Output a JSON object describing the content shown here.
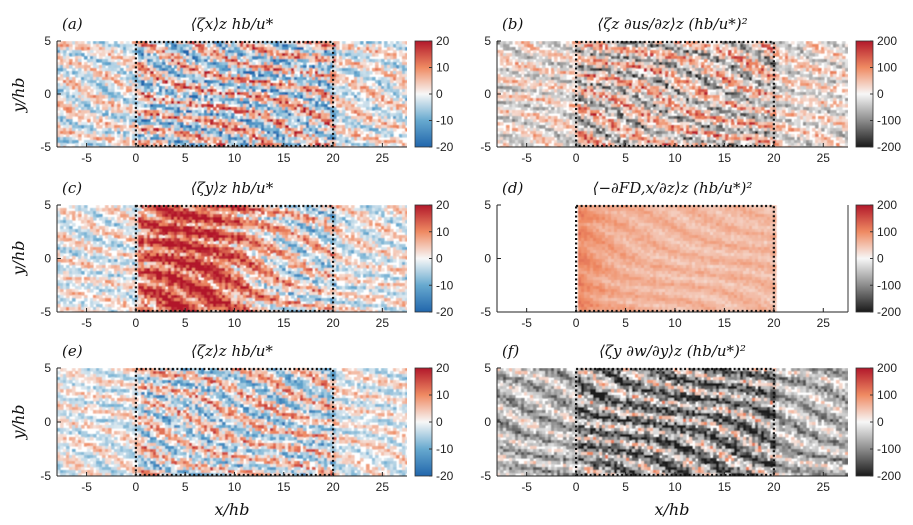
{
  "chart_data": [
    {
      "id": "a",
      "type": "heatmap",
      "panel_label": "(a)",
      "title": "⟨ζx⟩z hb/u*",
      "colormap": "diverging-blue-white-red",
      "clim": [
        -20,
        20
      ],
      "colorbar_ticks": [
        "20",
        "10",
        "0",
        "-10",
        "-20"
      ],
      "xlim": [
        -8,
        27.5
      ],
      "ylim": [
        -5,
        5
      ],
      "xticks": [
        "-5",
        "0",
        "5",
        "10",
        "15",
        "20",
        "25"
      ],
      "yticks": [
        "5",
        "0",
        "-5"
      ],
      "dotted_box_x": [
        0,
        20
      ],
      "pattern": "oblique streaks",
      "intensity": 0.95,
      "negative_bias": 0.0
    },
    {
      "id": "b",
      "type": "heatmap",
      "panel_label": "(b)",
      "title": "⟨ζz ∂us/∂z⟩z (hb/u*)²",
      "colormap": "diverging-black-white-red",
      "clim": [
        -200,
        200
      ],
      "colorbar_ticks": [
        "200",
        "100",
        "0",
        "-100",
        "-200"
      ],
      "xlim": [
        -8,
        27.5
      ],
      "ylim": [
        -5,
        5
      ],
      "xticks": [
        "-5",
        "0",
        "5",
        "10",
        "15",
        "20",
        "25"
      ],
      "yticks": [
        "5",
        "0",
        "-5"
      ],
      "dotted_box_x": [
        0,
        20
      ],
      "pattern": "oblique streaks",
      "intensity": 0.85,
      "negative_bias": 0.0
    },
    {
      "id": "c",
      "type": "heatmap",
      "panel_label": "(c)",
      "title": "⟨ζy⟩z hb/u*",
      "colormap": "diverging-blue-white-red",
      "clim": [
        -20,
        20
      ],
      "colorbar_ticks": [
        "20",
        "10",
        "0",
        "-10",
        "-20"
      ],
      "xlim": [
        -8,
        27.5
      ],
      "ylim": [
        -5,
        5
      ],
      "xticks": [
        "-5",
        "0",
        "5",
        "10",
        "15",
        "20",
        "25"
      ],
      "yticks": [
        "5",
        "0",
        "-5"
      ],
      "dotted_box_x": [
        0,
        20
      ],
      "pattern": "positive core near canopy edge",
      "intensity": 0.9,
      "negative_bias": 0.0
    },
    {
      "id": "d",
      "type": "heatmap",
      "panel_label": "(d)",
      "title": "⟨−∂FD,x/∂z⟩z (hb/u*)²",
      "colormap": "diverging-black-white-red",
      "clim": [
        -200,
        200
      ],
      "colorbar_ticks": [
        "200",
        "100",
        "0",
        "-100",
        "-200"
      ],
      "xlim": [
        -8,
        27.5
      ],
      "ylim": [
        -5,
        5
      ],
      "xticks": [
        "-5",
        "0",
        "5",
        "10",
        "15",
        "20",
        "25"
      ],
      "yticks": [
        "5",
        "0",
        "-5"
      ],
      "dotted_box_x": [
        0,
        20
      ],
      "pattern": "smooth positive inside box only",
      "intensity": 0.35,
      "negative_bias": 0.0
    },
    {
      "id": "e",
      "type": "heatmap",
      "panel_label": "(e)",
      "title": "⟨ζz⟩z hb/u*",
      "colormap": "diverging-blue-white-red",
      "clim": [
        -20,
        20
      ],
      "colorbar_ticks": [
        "20",
        "10",
        "0",
        "-10",
        "-20"
      ],
      "xlim": [
        -8,
        27.5
      ],
      "ylim": [
        -5,
        5
      ],
      "xticks": [
        "-5",
        "0",
        "5",
        "10",
        "15",
        "20",
        "25"
      ],
      "yticks": [
        "5",
        "0",
        "-5"
      ],
      "dotted_box_x": [
        0,
        20
      ],
      "pattern": "oblique streaks",
      "intensity": 0.75,
      "negative_bias": 0.0
    },
    {
      "id": "f",
      "type": "heatmap",
      "panel_label": "(f)",
      "title": "⟨ζy ∂w/∂y⟩z (hb/u*)²",
      "colormap": "diverging-black-white-red",
      "clim": [
        -200,
        200
      ],
      "colorbar_ticks": [
        "200",
        "100",
        "0",
        "-100",
        "-200"
      ],
      "xlim": [
        -8,
        27.5
      ],
      "ylim": [
        -5,
        5
      ],
      "xticks": [
        "-5",
        "0",
        "5",
        "10",
        "15",
        "20",
        "25"
      ],
      "yticks": [
        "5",
        "0",
        "-5"
      ],
      "dotted_box_x": [
        0,
        20
      ],
      "pattern": "oblique streaks, mostly negative",
      "intensity": 0.9,
      "negative_bias": 0.45
    }
  ],
  "axes": {
    "xlabel": "x/hb",
    "ylabel": "y/hb"
  },
  "colors": {
    "neg_blue": "#2166ac",
    "pos_red": "#c8102e",
    "neg_black": "#2b2b2b",
    "white": "#ffffff"
  }
}
